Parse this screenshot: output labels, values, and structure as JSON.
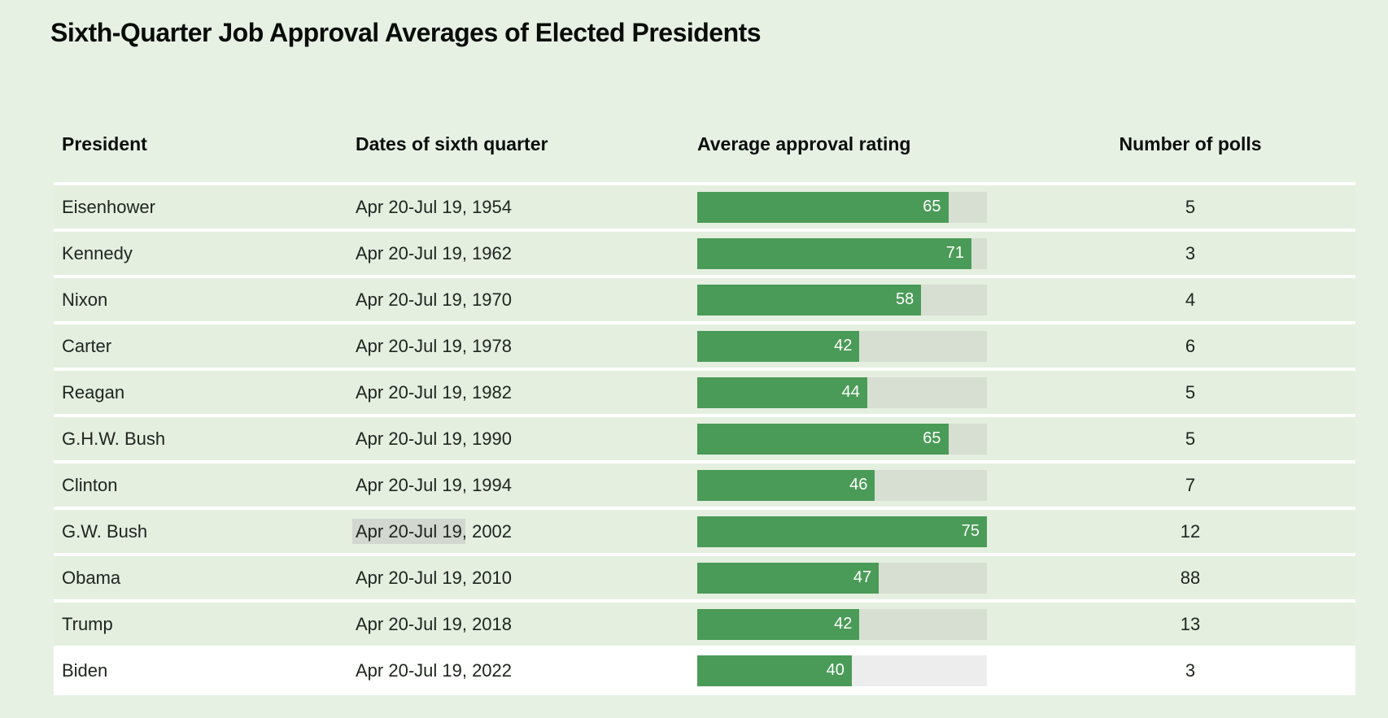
{
  "title": "Sixth-Quarter Job Approval Averages of Elected Presidents",
  "colors": {
    "page_background": "#e6f1e4",
    "row_background": "#e4efe0",
    "highlight_row_background": "#ffffff",
    "bar_fill": "#4a9b57",
    "bar_track": "#d6dfd2",
    "text_selection": "#d2d7cf",
    "bar_value_text": "#ffffff"
  },
  "table": {
    "columns": [
      "President",
      "Dates of sixth quarter",
      "Average approval rating",
      "Number of polls"
    ],
    "max_rating": 75,
    "rows": [
      {
        "president": "Eisenhower",
        "dates": "Apr 20-Jul 19, 1954",
        "rating": 65,
        "polls": 5
      },
      {
        "president": "Kennedy",
        "dates": "Apr 20-Jul 19, 1962",
        "rating": 71,
        "polls": 3
      },
      {
        "president": "Nixon",
        "dates": "Apr 20-Jul 19, 1970",
        "rating": 58,
        "polls": 4
      },
      {
        "president": "Carter",
        "dates": "Apr 20-Jul 19, 1978",
        "rating": 42,
        "polls": 6
      },
      {
        "president": "Reagan",
        "dates": "Apr 20-Jul 19, 1982",
        "rating": 44,
        "polls": 5
      },
      {
        "president": "G.H.W. Bush",
        "dates": "Apr 20-Jul 19, 1990",
        "rating": 65,
        "polls": 5
      },
      {
        "president": "Clinton",
        "dates": "Apr 20-Jul 19, 1994",
        "rating": 46,
        "polls": 7
      },
      {
        "president": "G.W. Bush",
        "dates_sel": "Apr 20-Jul 19",
        "dates_rest": ", 2002",
        "rating": 75,
        "polls": 12
      },
      {
        "president": "Obama",
        "dates": "Apr 20-Jul 19, 2010",
        "rating": 47,
        "polls": 88
      },
      {
        "president": "Trump",
        "dates": "Apr 20-Jul 19, 2018",
        "rating": 42,
        "polls": 13
      },
      {
        "president": "Biden",
        "dates": "Apr 20-Jul 19, 2022",
        "rating": 40,
        "polls": 3
      }
    ]
  },
  "chart_data": {
    "type": "bar",
    "title": "Sixth-Quarter Job Approval Averages of Elected Presidents",
    "categories": [
      "Eisenhower",
      "Kennedy",
      "Nixon",
      "Carter",
      "Reagan",
      "G.H.W. Bush",
      "Clinton",
      "G.W. Bush",
      "Obama",
      "Trump",
      "Biden"
    ],
    "dates": [
      "Apr 20-Jul 19, 1954",
      "Apr 20-Jul 19, 1962",
      "Apr 20-Jul 19, 1970",
      "Apr 20-Jul 19, 1978",
      "Apr 20-Jul 19, 1982",
      "Apr 20-Jul 19, 1990",
      "Apr 20-Jul 19, 1994",
      "Apr 20-Jul 19, 2002",
      "Apr 20-Jul 19, 2010",
      "Apr 20-Jul 19, 2018",
      "Apr 20-Jul 19, 2022"
    ],
    "series": [
      {
        "name": "Average approval rating",
        "values": [
          65,
          71,
          58,
          42,
          44,
          65,
          46,
          75,
          47,
          42,
          40
        ]
      },
      {
        "name": "Number of polls",
        "values": [
          5,
          3,
          4,
          6,
          5,
          5,
          7,
          12,
          88,
          13,
          3
        ]
      }
    ],
    "bar_axis_range": [
      0,
      75
    ],
    "orientation": "horizontal",
    "legend": "none",
    "grid": "off"
  }
}
